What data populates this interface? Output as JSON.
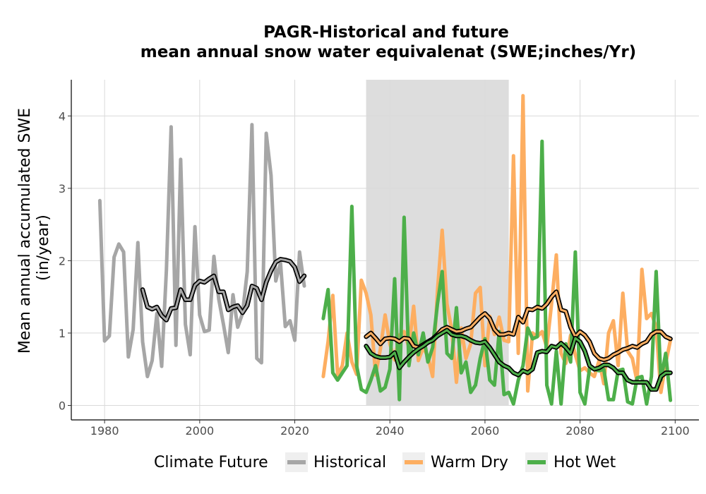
{
  "chart_data": {
    "type": "line",
    "title": "PAGR-Historical and future",
    "subtitle": "mean annual snow water equivalenat (SWE;inches/Yr)",
    "ylabel_line1": "Mean annual accumulated SWE",
    "ylabel_line2": "(in/year)",
    "xlabel": "",
    "xlim": [
      1973,
      2105
    ],
    "ylim": [
      -0.2,
      4.5
    ],
    "x_ticks": [
      1980,
      2000,
      2020,
      2040,
      2060,
      2080,
      2100
    ],
    "y_ticks": [
      0,
      1,
      2,
      3,
      4
    ],
    "shaded_period": [
      2035,
      2065
    ],
    "grid": true,
    "legend": {
      "title": "Climate Future",
      "position": "bottom",
      "entries": [
        {
          "name": "Historical",
          "color": "#a6a6a6"
        },
        {
          "name": "Warm Dry",
          "color": "#fdae61"
        },
        {
          "name": "Hot Wet",
          "color": "#4daf4a"
        }
      ]
    },
    "series": [
      {
        "name": "Historical",
        "color": "#a6a6a6",
        "x": [
          1979,
          1980,
          1981,
          1982,
          1983,
          1984,
          1985,
          1986,
          1987,
          1988,
          1989,
          1990,
          1991,
          1992,
          1993,
          1994,
          1995,
          1996,
          1997,
          1998,
          1999,
          2000,
          2001,
          2002,
          2003,
          2004,
          2005,
          2006,
          2007,
          2008,
          2009,
          2010,
          2011,
          2012,
          2013,
          2014,
          2015,
          2016,
          2017,
          2018,
          2019,
          2020,
          2021,
          2022
        ],
        "values": [
          2.83,
          0.89,
          0.96,
          2.05,
          2.23,
          2.12,
          0.67,
          1.05,
          2.25,
          0.88,
          0.4,
          0.62,
          1.27,
          0.54,
          1.87,
          3.85,
          0.83,
          3.4,
          1.12,
          0.7,
          2.47,
          1.25,
          1.02,
          1.04,
          2.06,
          1.47,
          1.12,
          0.73,
          1.53,
          1.08,
          1.27,
          1.85,
          3.88,
          0.65,
          0.59,
          3.76,
          3.18,
          1.72,
          1.97,
          1.09,
          1.17,
          0.9,
          2.12,
          1.65
        ],
        "rolling_mean": [
          [
            1988,
            1.6
          ],
          [
            1989,
            1.36
          ],
          [
            1990,
            1.33
          ],
          [
            1991,
            1.36
          ],
          [
            1992,
            1.24
          ],
          [
            1993,
            1.18
          ],
          [
            1994,
            1.34
          ],
          [
            1995,
            1.35
          ],
          [
            1996,
            1.6
          ],
          [
            1997,
            1.46
          ],
          [
            1998,
            1.46
          ],
          [
            1999,
            1.66
          ],
          [
            2000,
            1.72
          ],
          [
            2001,
            1.7
          ],
          [
            2002,
            1.75
          ],
          [
            2003,
            1.79
          ],
          [
            2004,
            1.57
          ],
          [
            2005,
            1.57
          ],
          [
            2006,
            1.32
          ],
          [
            2007,
            1.36
          ],
          [
            2008,
            1.38
          ],
          [
            2009,
            1.28
          ],
          [
            2010,
            1.38
          ],
          [
            2011,
            1.65
          ],
          [
            2012,
            1.62
          ],
          [
            2013,
            1.46
          ],
          [
            2014,
            1.7
          ],
          [
            2015,
            1.86
          ],
          [
            2016,
            1.98
          ],
          [
            2017,
            2.02
          ],
          [
            2018,
            2.01
          ],
          [
            2019,
            1.99
          ],
          [
            2020,
            1.91
          ],
          [
            2021,
            1.71
          ],
          [
            2022,
            1.79
          ]
        ]
      },
      {
        "name": "Warm Dry",
        "color": "#fdae61",
        "x": [
          2026,
          2027,
          2028,
          2029,
          2030,
          2031,
          2032,
          2033,
          2034,
          2035,
          2036,
          2037,
          2038,
          2039,
          2040,
          2041,
          2042,
          2043,
          2044,
          2045,
          2046,
          2047,
          2048,
          2049,
          2050,
          2051,
          2052,
          2053,
          2054,
          2055,
          2056,
          2057,
          2058,
          2059,
          2060,
          2061,
          2062,
          2063,
          2064,
          2065,
          2066,
          2067,
          2068,
          2069,
          2070,
          2071,
          2072,
          2073,
          2074,
          2075,
          2076,
          2077,
          2078,
          2079,
          2080,
          2081,
          2082,
          2083,
          2084,
          2085,
          2086,
          2087,
          2088,
          2089,
          2090,
          2091,
          2092,
          2093,
          2094,
          2095,
          2096,
          2097,
          2098,
          2099
        ],
        "values": [
          0.4,
          0.88,
          1.52,
          0.42,
          0.55,
          1.0,
          0.6,
          0.43,
          1.73,
          1.55,
          1.25,
          0.42,
          0.78,
          1.25,
          0.85,
          0.63,
          0.97,
          1.02,
          0.8,
          1.37,
          0.62,
          0.8,
          0.68,
          0.4,
          1.58,
          2.42,
          1.4,
          1.05,
          0.32,
          1.07,
          0.65,
          0.85,
          1.55,
          1.63,
          0.55,
          1.23,
          0.98,
          1.22,
          0.9,
          0.88,
          3.45,
          0.72,
          4.28,
          0.2,
          1.0,
          0.95,
          1.02,
          0.8,
          1.4,
          2.08,
          0.72,
          0.58,
          0.97,
          0.7,
          0.48,
          0.52,
          0.45,
          0.4,
          0.62,
          0.3,
          1.0,
          1.17,
          0.55,
          1.55,
          0.75,
          0.65,
          0.33,
          1.88,
          1.2,
          1.27,
          1.08,
          0.18,
          0.58,
          0.9
        ],
        "rolling_mean": [
          [
            2035,
            0.95
          ],
          [
            2036,
            1.0
          ],
          [
            2037,
            0.93
          ],
          [
            2038,
            0.85
          ],
          [
            2039,
            0.92
          ],
          [
            2040,
            0.93
          ],
          [
            2041,
            0.92
          ],
          [
            2042,
            0.88
          ],
          [
            2043,
            0.93
          ],
          [
            2044,
            0.92
          ],
          [
            2045,
            0.82
          ],
          [
            2046,
            0.8
          ],
          [
            2047,
            0.84
          ],
          [
            2048,
            0.88
          ],
          [
            2049,
            0.92
          ],
          [
            2050,
            0.98
          ],
          [
            2051,
            1.05
          ],
          [
            2052,
            1.08
          ],
          [
            2053,
            1.05
          ],
          [
            2054,
            1.02
          ],
          [
            2055,
            1.03
          ],
          [
            2056,
            1.06
          ],
          [
            2057,
            1.08
          ],
          [
            2058,
            1.15
          ],
          [
            2059,
            1.22
          ],
          [
            2060,
            1.27
          ],
          [
            2061,
            1.2
          ],
          [
            2062,
            1.05
          ],
          [
            2063,
            0.98
          ],
          [
            2064,
            0.98
          ],
          [
            2065,
            1.0
          ],
          [
            2066,
            0.98
          ],
          [
            2067,
            1.22
          ],
          [
            2068,
            1.15
          ],
          [
            2069,
            1.33
          ],
          [
            2070,
            1.32
          ],
          [
            2071,
            1.36
          ],
          [
            2072,
            1.34
          ],
          [
            2073,
            1.4
          ],
          [
            2074,
            1.5
          ],
          [
            2075,
            1.57
          ],
          [
            2076,
            1.32
          ],
          [
            2077,
            1.3
          ],
          [
            2078,
            1.08
          ],
          [
            2079,
            0.95
          ],
          [
            2080,
            1.02
          ],
          [
            2081,
            0.97
          ],
          [
            2082,
            0.88
          ],
          [
            2083,
            0.72
          ],
          [
            2084,
            0.65
          ],
          [
            2085,
            0.63
          ],
          [
            2086,
            0.65
          ],
          [
            2087,
            0.7
          ],
          [
            2088,
            0.73
          ],
          [
            2089,
            0.77
          ],
          [
            2090,
            0.79
          ],
          [
            2091,
            0.82
          ],
          [
            2092,
            0.8
          ],
          [
            2093,
            0.85
          ],
          [
            2094,
            0.88
          ],
          [
            2095,
            0.98
          ],
          [
            2096,
            1.02
          ],
          [
            2097,
            1.02
          ],
          [
            2098,
            0.95
          ],
          [
            2099,
            0.92
          ]
        ]
      },
      {
        "name": "Hot Wet",
        "color": "#4daf4a",
        "x": [
          2026,
          2027,
          2028,
          2029,
          2030,
          2031,
          2032,
          2033,
          2034,
          2035,
          2036,
          2037,
          2038,
          2039,
          2040,
          2041,
          2042,
          2043,
          2044,
          2045,
          2046,
          2047,
          2048,
          2049,
          2050,
          2051,
          2052,
          2053,
          2054,
          2055,
          2056,
          2057,
          2058,
          2059,
          2060,
          2061,
          2062,
          2063,
          2064,
          2065,
          2066,
          2067,
          2068,
          2069,
          2070,
          2071,
          2072,
          2073,
          2074,
          2075,
          2076,
          2077,
          2078,
          2079,
          2080,
          2081,
          2082,
          2083,
          2084,
          2085,
          2086,
          2087,
          2088,
          2089,
          2090,
          2091,
          2092,
          2093,
          2094,
          2095,
          2096,
          2097,
          2098,
          2099
        ],
        "values": [
          1.2,
          1.6,
          0.45,
          0.35,
          0.45,
          0.55,
          2.75,
          0.55,
          0.22,
          0.18,
          0.35,
          0.55,
          0.2,
          0.25,
          0.5,
          1.75,
          0.08,
          2.6,
          0.55,
          1.0,
          0.7,
          1.0,
          0.6,
          0.8,
          1.4,
          1.85,
          0.72,
          0.65,
          1.35,
          0.45,
          0.6,
          0.18,
          0.28,
          0.65,
          0.92,
          0.35,
          0.28,
          1.02,
          0.15,
          0.18,
          0.02,
          0.35,
          0.55,
          1.07,
          0.92,
          0.95,
          3.65,
          0.28,
          0.02,
          0.75,
          0.02,
          0.85,
          0.6,
          2.12,
          0.18,
          0.02,
          0.52,
          0.5,
          0.48,
          0.5,
          0.08,
          0.08,
          0.48,
          0.5,
          0.05,
          0.02,
          0.38,
          0.4,
          0.02,
          0.4,
          1.85,
          0.35,
          0.72,
          0.07
        ],
        "rolling_mean": [
          [
            2035,
            0.82
          ],
          [
            2036,
            0.72
          ],
          [
            2037,
            0.68
          ],
          [
            2038,
            0.66
          ],
          [
            2039,
            0.66
          ],
          [
            2040,
            0.67
          ],
          [
            2041,
            0.73
          ],
          [
            2042,
            0.52
          ],
          [
            2043,
            0.6
          ],
          [
            2044,
            0.67
          ],
          [
            2045,
            0.73
          ],
          [
            2046,
            0.78
          ],
          [
            2047,
            0.82
          ],
          [
            2048,
            0.87
          ],
          [
            2049,
            0.9
          ],
          [
            2050,
            0.96
          ],
          [
            2051,
            1.0
          ],
          [
            2052,
            1.04
          ],
          [
            2053,
            0.98
          ],
          [
            2054,
            0.96
          ],
          [
            2055,
            0.96
          ],
          [
            2056,
            0.94
          ],
          [
            2057,
            0.9
          ],
          [
            2058,
            0.87
          ],
          [
            2059,
            0.86
          ],
          [
            2060,
            0.88
          ],
          [
            2061,
            0.8
          ],
          [
            2062,
            0.7
          ],
          [
            2063,
            0.6
          ],
          [
            2064,
            0.55
          ],
          [
            2065,
            0.52
          ],
          [
            2066,
            0.45
          ],
          [
            2067,
            0.42
          ],
          [
            2068,
            0.48
          ],
          [
            2069,
            0.45
          ],
          [
            2070,
            0.5
          ],
          [
            2071,
            0.73
          ],
          [
            2072,
            0.75
          ],
          [
            2073,
            0.74
          ],
          [
            2074,
            0.82
          ],
          [
            2075,
            0.8
          ],
          [
            2076,
            0.86
          ],
          [
            2077,
            0.8
          ],
          [
            2078,
            0.72
          ],
          [
            2079,
            0.93
          ],
          [
            2080,
            0.88
          ],
          [
            2081,
            0.75
          ],
          [
            2082,
            0.55
          ],
          [
            2083,
            0.5
          ],
          [
            2084,
            0.52
          ],
          [
            2085,
            0.56
          ],
          [
            2086,
            0.56
          ],
          [
            2087,
            0.52
          ],
          [
            2088,
            0.45
          ],
          [
            2089,
            0.45
          ],
          [
            2090,
            0.35
          ],
          [
            2091,
            0.32
          ],
          [
            2092,
            0.32
          ],
          [
            2093,
            0.32
          ],
          [
            2094,
            0.32
          ],
          [
            2095,
            0.22
          ],
          [
            2096,
            0.22
          ],
          [
            2097,
            0.4
          ],
          [
            2098,
            0.45
          ],
          [
            2099,
            0.45
          ]
        ]
      }
    ]
  }
}
